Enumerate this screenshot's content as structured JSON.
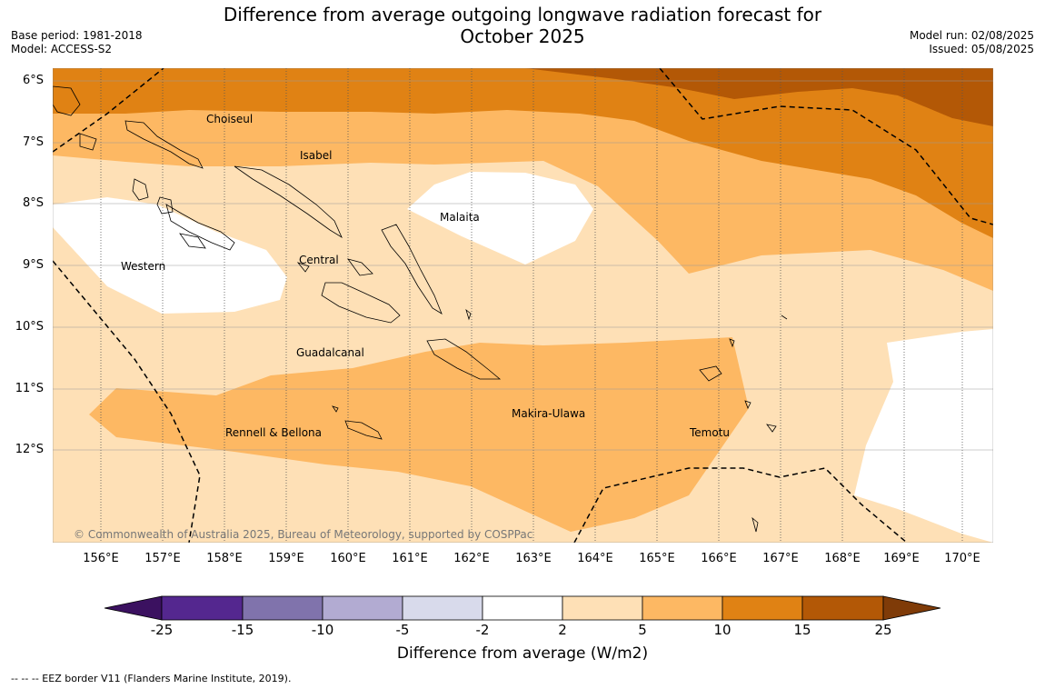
{
  "title_line1": "Difference from average outgoing longwave radiation forecast for",
  "title_line2": "October 2025",
  "meta_left": {
    "base_period": "Base period: 1981-2018",
    "model": "Model: ACCESS-S2"
  },
  "meta_right": {
    "model_run": "Model run: 02/08/2025",
    "issued": "Issued: 05/08/2025"
  },
  "lat_labels": [
    "6°S",
    "7°S",
    "8°S",
    "9°S",
    "10°S",
    "11°S",
    "12°S"
  ],
  "lon_labels": [
    "156°E",
    "157°E",
    "158°E",
    "159°E",
    "160°E",
    "161°E",
    "162°E",
    "163°E",
    "164°E",
    "165°E",
    "166°E",
    "167°E",
    "168°E",
    "169°E",
    "170°E"
  ],
  "provinces": {
    "choiseul": "Choiseul",
    "isabel": "Isabel",
    "malaita": "Malaita",
    "western": "Western",
    "central": "Central",
    "guadalcanal": "Guadalcanal",
    "makira": "Makira-Ulawa",
    "rennell": "Rennell & Bellona",
    "temotu": "Temotu"
  },
  "copyright": "© Commonwealth of Australia 2025, Bureau of Meteorology, supported by COSPPac",
  "colorbar": {
    "ticks": [
      "-25",
      "-15",
      "-10",
      "-5",
      "-2",
      "2",
      "5",
      "10",
      "15",
      "25"
    ],
    "colors": [
      "#3b1160",
      "#54278f",
      "#8073ac",
      "#b2abd2",
      "#d8daeb",
      "#ffffff",
      "#fee0b6",
      "#fdb863",
      "#e08214",
      "#b35806",
      "#7f3b08"
    ],
    "label": "Difference from average (W/m2)"
  },
  "footnote": "--  --  -- EEZ border V11 (Flanders Marine Institute, 2019)."
}
